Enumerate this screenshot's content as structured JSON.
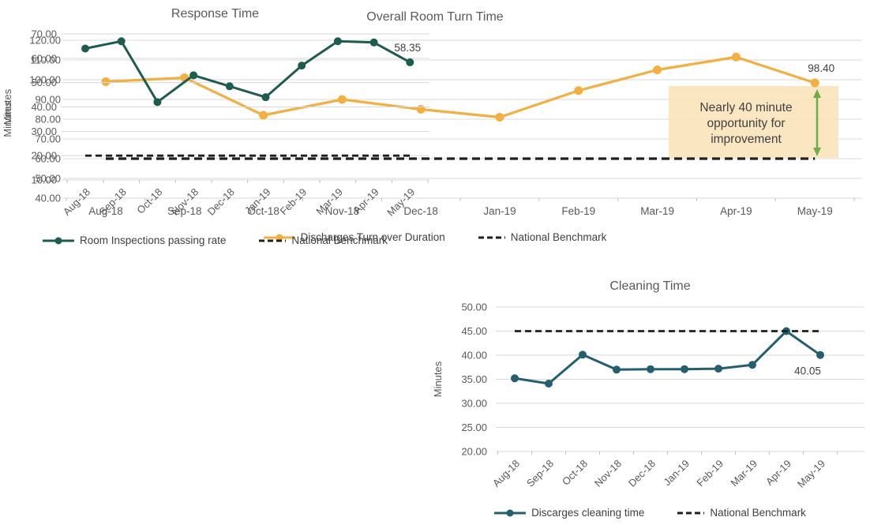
{
  "colors": {
    "background": "#FFFFFF",
    "grid": "#D9D9D9",
    "tick": "#BFBFBF",
    "axis_text": "#595959",
    "legend_text": "#404040",
    "data_label": "#404040",
    "turnover_line": "#F2AF42",
    "benchmark_line": "#1F1F1F",
    "inspection_line": "#1F5C50",
    "cleaning_line": "#255F6E",
    "annotation_fill": "#FAE2B9",
    "annotation_text": "#404040",
    "annotation_arrow": "#6FAD47"
  },
  "chart_data": [
    {
      "type": "line",
      "title": "Overall Room Turn Time",
      "xlabel": "",
      "ylabel": "Minutes",
      "categories": [
        "Aug-18",
        "Sep-18",
        "Oct-18",
        "Nov-18",
        "Dec-18",
        "Jan-19",
        "Feb-19",
        "Mar-19",
        "Apr-19",
        "May-19"
      ],
      "series": [
        {
          "name": "Discharges Turn over Duration",
          "values": [
            99,
            101,
            82,
            90,
            85,
            81,
            94.5,
            105,
            111.5,
            98.4
          ],
          "color_key": "turnover_line",
          "marker": "circle"
        },
        {
          "name": "National Benchmark",
          "constant": 60,
          "style": "dashed",
          "color_key": "benchmark_line"
        }
      ],
      "ylim": [
        40,
        120
      ],
      "ystep": 10,
      "ytick_decimals": 2,
      "grid": true,
      "legend_position": "bottom",
      "last_point_label": "98.40",
      "annotation": {
        "lines": [
          "Nearly 40 minute",
          "opportunity for",
          "improvement"
        ]
      }
    },
    {
      "type": "line",
      "title": "Response Time",
      "xlabel": "",
      "ylabel": "Minutes",
      "categories": [
        "Aug-18",
        "Sep-18",
        "Oct-18",
        "Nov-18",
        "Dec-18",
        "Jan-19",
        "Feb-19",
        "Mar-19",
        "Apr-19",
        "May-19"
      ],
      "series": [
        {
          "name": "Room Inspections passing rate",
          "values": [
            64,
            67,
            42,
            53,
            48.5,
            44,
            57,
            67,
            66.5,
            58.35
          ],
          "color_key": "inspection_line",
          "marker": "circle"
        },
        {
          "name": "National Benchmark",
          "constant": 20,
          "style": "dashed",
          "color_key": "benchmark_line"
        }
      ],
      "ylim": [
        10,
        70
      ],
      "ystep": 10,
      "ytick_decimals": 2,
      "grid": true,
      "legend_position": "bottom",
      "last_point_label": "58.35"
    },
    {
      "type": "line",
      "title": "Cleaning Time",
      "xlabel": "",
      "ylabel": "Minutes",
      "categories": [
        "Aug-18",
        "Sep-18",
        "Oct-18",
        "Nov-18",
        "Dec-18",
        "Jan-19",
        "Feb-19",
        "Mar-19",
        "Apr-19",
        "May-19"
      ],
      "series": [
        {
          "name": "Discarges cleaning time",
          "values": [
            35.2,
            34.1,
            40.1,
            37,
            37.1,
            37.1,
            37.2,
            38,
            45,
            40.05
          ],
          "color_key": "cleaning_line",
          "marker": "circle"
        },
        {
          "name": "National Benchmark",
          "constant": 45,
          "style": "dashed",
          "color_key": "benchmark_line"
        }
      ],
      "ylim": [
        20,
        50
      ],
      "ystep": 5,
      "ytick_decimals": 2,
      "grid": true,
      "legend_position": "bottom",
      "last_point_label": "40.05"
    }
  ]
}
